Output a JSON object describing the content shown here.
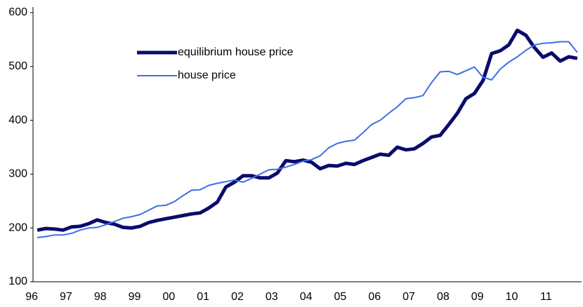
{
  "chart_data": {
    "type": "line",
    "categories": [
      "96",
      null,
      null,
      null,
      "97",
      null,
      null,
      null,
      "98",
      null,
      null,
      null,
      "99",
      null,
      null,
      null,
      "00",
      null,
      null,
      null,
      "01",
      null,
      null,
      null,
      "02",
      null,
      null,
      null,
      "03",
      null,
      null,
      null,
      "04",
      null,
      null,
      null,
      "05",
      null,
      null,
      null,
      "06",
      null,
      null,
      null,
      "07",
      null,
      null,
      null,
      "08",
      null,
      null,
      null,
      "09",
      null,
      null,
      null,
      "10",
      null,
      null,
      null,
      "11",
      null,
      null,
      null
    ],
    "series": [
      {
        "name": "equilibrium house price",
        "color": "#0b0b6b",
        "width": 5,
        "values": [
          196,
          199,
          198,
          196,
          202,
          203,
          208,
          215,
          210,
          207,
          201,
          200,
          203,
          210,
          214,
          217,
          220,
          223,
          226,
          228,
          237,
          248,
          276,
          285,
          297,
          297,
          293,
          293,
          302,
          325,
          323,
          326,
          322,
          310,
          316,
          315,
          320,
          318,
          325,
          331,
          337,
          335,
          350,
          345,
          347,
          357,
          369,
          372,
          392,
          413,
          440,
          450,
          474,
          524,
          529,
          540,
          567,
          558,
          535,
          517,
          525,
          510,
          518,
          515
        ]
      },
      {
        "name": "house price",
        "color": "#3d6fe6",
        "width": 2,
        "values": [
          182,
          184,
          187,
          187,
          190,
          196,
          200,
          201,
          206,
          212,
          218,
          221,
          225,
          233,
          241,
          242,
          249,
          260,
          270,
          271,
          279,
          283,
          286,
          289,
          285,
          292,
          300,
          308,
          309,
          313,
          318,
          324,
          327,
          334,
          349,
          357,
          361,
          363,
          377,
          392,
          400,
          413,
          425,
          440,
          442,
          446,
          470,
          490,
          491,
          485,
          492,
          499,
          480,
          475,
          495,
          508,
          518,
          530,
          540,
          543,
          544,
          546,
          546,
          526
        ]
      }
    ],
    "ylim": [
      100,
      600
    ],
    "yticks": [
      100,
      200,
      300,
      400,
      500,
      600
    ],
    "grid": false
  }
}
